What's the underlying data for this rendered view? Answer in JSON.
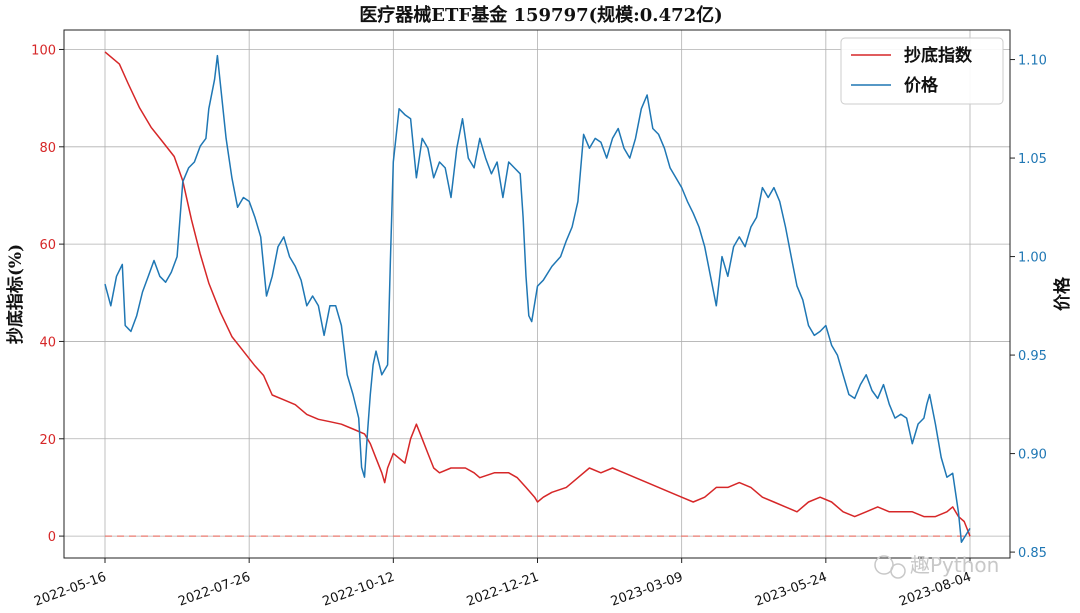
{
  "chart_data": {
    "type": "line",
    "title": "医疗器械ETF基金 159797(规模:0.472亿)",
    "ylabel_left": "抄底指标(%)",
    "ylabel_right": "价格",
    "xlabel": "",
    "x_tick_labels": [
      "2022-05-16",
      "2022-07-26",
      "2022-10-12",
      "2022-12-21",
      "2023-03-09",
      "2023-05-24",
      "2023-08-04"
    ],
    "x_range": [
      0,
      300
    ],
    "x_tick_positions": [
      0,
      50,
      100,
      150,
      200,
      250,
      300
    ],
    "ylim_left": [
      -4.5,
      104
    ],
    "yticks_left": [
      0,
      20,
      40,
      60,
      80,
      100
    ],
    "ylim_right": [
      0.847,
      1.115
    ],
    "yticks_right": [
      0.85,
      0.9,
      0.95,
      1.0,
      1.05,
      1.1
    ],
    "grid": true,
    "legend_position": "top-right",
    "legend": [
      "抄底指数",
      "价格"
    ],
    "reference_line": {
      "axis": "left",
      "value": 0,
      "style": "dashed",
      "color": "#e8796f"
    },
    "series": [
      {
        "name": "抄底指数",
        "axis": "left",
        "color": "#d62728",
        "points": [
          [
            0,
            99.5
          ],
          [
            5,
            97
          ],
          [
            8,
            93
          ],
          [
            12,
            88
          ],
          [
            16,
            84
          ],
          [
            20,
            81
          ],
          [
            24,
            78
          ],
          [
            27,
            73
          ],
          [
            30,
            65
          ],
          [
            33,
            58
          ],
          [
            36,
            52
          ],
          [
            40,
            46
          ],
          [
            44,
            41
          ],
          [
            48,
            38
          ],
          [
            52,
            35
          ],
          [
            55,
            33
          ],
          [
            58,
            29
          ],
          [
            62,
            28
          ],
          [
            66,
            27
          ],
          [
            70,
            25
          ],
          [
            74,
            24
          ],
          [
            78,
            23.5
          ],
          [
            82,
            23
          ],
          [
            86,
            22
          ],
          [
            90,
            21
          ],
          [
            92,
            19
          ],
          [
            94,
            16
          ],
          [
            96,
            13
          ],
          [
            97,
            11
          ],
          [
            98,
            14
          ],
          [
            100,
            17
          ],
          [
            102,
            16
          ],
          [
            104,
            15
          ],
          [
            106,
            20
          ],
          [
            108,
            23
          ],
          [
            110,
            20
          ],
          [
            112,
            17
          ],
          [
            114,
            14
          ],
          [
            116,
            13
          ],
          [
            120,
            14
          ],
          [
            125,
            14
          ],
          [
            128,
            13
          ],
          [
            130,
            12
          ],
          [
            135,
            13
          ],
          [
            140,
            13
          ],
          [
            143,
            12
          ],
          [
            146,
            10
          ],
          [
            149,
            8
          ],
          [
            150,
            7
          ],
          [
            152,
            8
          ],
          [
            155,
            9
          ],
          [
            160,
            10
          ],
          [
            164,
            12
          ],
          [
            168,
            14
          ],
          [
            172,
            13
          ],
          [
            176,
            14
          ],
          [
            180,
            13
          ],
          [
            184,
            12
          ],
          [
            188,
            11
          ],
          [
            192,
            10
          ],
          [
            196,
            9
          ],
          [
            200,
            8
          ],
          [
            204,
            7
          ],
          [
            208,
            8
          ],
          [
            212,
            10
          ],
          [
            216,
            10
          ],
          [
            220,
            11
          ],
          [
            224,
            10
          ],
          [
            228,
            8
          ],
          [
            232,
            7
          ],
          [
            236,
            6
          ],
          [
            240,
            5
          ],
          [
            244,
            7
          ],
          [
            248,
            8
          ],
          [
            252,
            7
          ],
          [
            256,
            5
          ],
          [
            260,
            4
          ],
          [
            264,
            5
          ],
          [
            268,
            6
          ],
          [
            272,
            5
          ],
          [
            276,
            5
          ],
          [
            280,
            5
          ],
          [
            284,
            4
          ],
          [
            288,
            4
          ],
          [
            292,
            5
          ],
          [
            294,
            6
          ],
          [
            296,
            4
          ],
          [
            298,
            3
          ],
          [
            300,
            0
          ]
        ]
      },
      {
        "name": "价格",
        "axis": "right",
        "color": "#1f77b4",
        "points": [
          [
            0,
            0.986
          ],
          [
            2,
            0.975
          ],
          [
            4,
            0.99
          ],
          [
            6,
            0.996
          ],
          [
            7,
            0.965
          ],
          [
            9,
            0.962
          ],
          [
            11,
            0.97
          ],
          [
            13,
            0.982
          ],
          [
            15,
            0.99
          ],
          [
            17,
            0.998
          ],
          [
            19,
            0.99
          ],
          [
            21,
            0.987
          ],
          [
            23,
            0.992
          ],
          [
            25,
            1.0
          ],
          [
            27,
            1.038
          ],
          [
            29,
            1.045
          ],
          [
            31,
            1.048
          ],
          [
            33,
            1.056
          ],
          [
            35,
            1.06
          ],
          [
            36,
            1.075
          ],
          [
            38,
            1.09
          ],
          [
            39,
            1.102
          ],
          [
            40,
            1.088
          ],
          [
            42,
            1.06
          ],
          [
            43,
            1.05
          ],
          [
            44,
            1.04
          ],
          [
            46,
            1.025
          ],
          [
            48,
            1.03
          ],
          [
            50,
            1.028
          ],
          [
            52,
            1.02
          ],
          [
            54,
            1.01
          ],
          [
            56,
            0.98
          ],
          [
            58,
            0.99
          ],
          [
            60,
            1.005
          ],
          [
            62,
            1.01
          ],
          [
            64,
            1.0
          ],
          [
            66,
            0.995
          ],
          [
            68,
            0.988
          ],
          [
            70,
            0.975
          ],
          [
            72,
            0.98
          ],
          [
            74,
            0.975
          ],
          [
            76,
            0.96
          ],
          [
            78,
            0.975
          ],
          [
            80,
            0.975
          ],
          [
            82,
            0.965
          ],
          [
            84,
            0.94
          ],
          [
            86,
            0.93
          ],
          [
            88,
            0.918
          ],
          [
            89,
            0.893
          ],
          [
            90,
            0.888
          ],
          [
            91,
            0.91
          ],
          [
            92,
            0.93
          ],
          [
            93,
            0.945
          ],
          [
            94,
            0.952
          ],
          [
            96,
            0.94
          ],
          [
            98,
            0.945
          ],
          [
            99,
            0.998
          ],
          [
            100,
            1.048
          ],
          [
            102,
            1.075
          ],
          [
            104,
            1.072
          ],
          [
            106,
            1.07
          ],
          [
            108,
            1.04
          ],
          [
            110,
            1.06
          ],
          [
            112,
            1.055
          ],
          [
            114,
            1.04
          ],
          [
            116,
            1.048
          ],
          [
            118,
            1.045
          ],
          [
            120,
            1.03
          ],
          [
            122,
            1.055
          ],
          [
            124,
            1.07
          ],
          [
            126,
            1.05
          ],
          [
            128,
            1.045
          ],
          [
            130,
            1.06
          ],
          [
            132,
            1.05
          ],
          [
            134,
            1.042
          ],
          [
            136,
            1.048
          ],
          [
            138,
            1.03
          ],
          [
            140,
            1.048
          ],
          [
            142,
            1.045
          ],
          [
            144,
            1.042
          ],
          [
            145,
            1.02
          ],
          [
            146,
            0.99
          ],
          [
            147,
            0.97
          ],
          [
            148,
            0.967
          ],
          [
            150,
            0.985
          ],
          [
            152,
            0.988
          ],
          [
            155,
            0.995
          ],
          [
            158,
            1.0
          ],
          [
            160,
            1.008
          ],
          [
            162,
            1.015
          ],
          [
            164,
            1.028
          ],
          [
            166,
            1.062
          ],
          [
            168,
            1.055
          ],
          [
            170,
            1.06
          ],
          [
            172,
            1.058
          ],
          [
            174,
            1.05
          ],
          [
            176,
            1.06
          ],
          [
            178,
            1.065
          ],
          [
            180,
            1.055
          ],
          [
            182,
            1.05
          ],
          [
            184,
            1.06
          ],
          [
            186,
            1.075
          ],
          [
            188,
            1.082
          ],
          [
            190,
            1.065
          ],
          [
            192,
            1.062
          ],
          [
            194,
            1.055
          ],
          [
            196,
            1.045
          ],
          [
            198,
            1.04
          ],
          [
            200,
            1.035
          ],
          [
            202,
            1.028
          ],
          [
            204,
            1.022
          ],
          [
            206,
            1.015
          ],
          [
            208,
            1.005
          ],
          [
            210,
            0.99
          ],
          [
            212,
            0.975
          ],
          [
            214,
            1.0
          ],
          [
            216,
            0.99
          ],
          [
            218,
            1.005
          ],
          [
            220,
            1.01
          ],
          [
            222,
            1.005
          ],
          [
            224,
            1.015
          ],
          [
            226,
            1.02
          ],
          [
            228,
            1.035
          ],
          [
            230,
            1.03
          ],
          [
            232,
            1.035
          ],
          [
            234,
            1.028
          ],
          [
            236,
            1.015
          ],
          [
            238,
            1.0
          ],
          [
            240,
            0.985
          ],
          [
            242,
            0.978
          ],
          [
            244,
            0.965
          ],
          [
            246,
            0.96
          ],
          [
            248,
            0.962
          ],
          [
            250,
            0.965
          ],
          [
            252,
            0.955
          ],
          [
            254,
            0.95
          ],
          [
            256,
            0.94
          ],
          [
            258,
            0.93
          ],
          [
            260,
            0.928
          ],
          [
            262,
            0.935
          ],
          [
            264,
            0.94
          ],
          [
            266,
            0.932
          ],
          [
            268,
            0.928
          ],
          [
            270,
            0.935
          ],
          [
            272,
            0.925
          ],
          [
            274,
            0.918
          ],
          [
            276,
            0.92
          ],
          [
            278,
            0.918
          ],
          [
            280,
            0.905
          ],
          [
            282,
            0.915
          ],
          [
            284,
            0.918
          ],
          [
            285,
            0.925
          ],
          [
            286,
            0.93
          ],
          [
            288,
            0.915
          ],
          [
            290,
            0.898
          ],
          [
            292,
            0.888
          ],
          [
            294,
            0.89
          ],
          [
            295,
            0.88
          ],
          [
            296,
            0.87
          ],
          [
            297,
            0.855
          ],
          [
            300,
            0.862
          ]
        ]
      }
    ],
    "watermark": "趣Python"
  }
}
